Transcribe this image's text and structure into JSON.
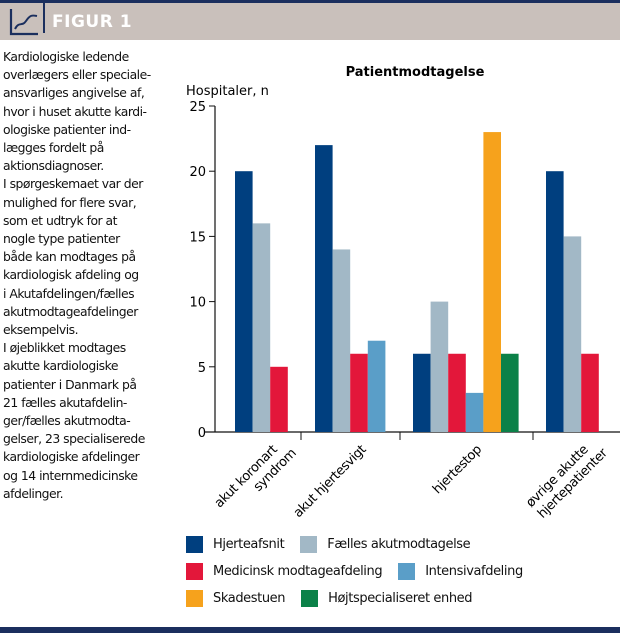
{
  "header": {
    "title": "FIGUR 1",
    "icon": "line-chart-icon"
  },
  "description": {
    "paragraphs": [
      "Kardiologiske ledende\noverlægers eller speciale-\nansvarliges angivelse af,\nhvor i huset akutte kardi-\nologiske patienter ind-\nlægges fordelt på\naktionsdiagnoser.",
      "I spørgeskemaet var der\nmulighed for flere svar,\nsom et udtryk for at\nnogle type patienter\nbåde kan modtages på\nkardiologisk afdeling og\ni Akutafdelingen/fælles\nakutmodtageafdelinger\neksempelvis.",
      "I øjeblikket modtages\nakutte kardiologiske\npatienter i Danmark på\n21 fælles akutafdelin-\nger/fælles akutmodta-\ngelser, 23 specialiserede\nkardiologiske afdelinger\nog 14 internmedicinske\nafdelinger."
    ]
  },
  "chart_data": {
    "type": "bar",
    "title": "Patientmodtagelse",
    "ylabel": "Hospitaler, n",
    "xlabel": "",
    "ylim": [
      0,
      25
    ],
    "yticks": [
      0,
      5,
      10,
      15,
      20,
      25
    ],
    "grid": false,
    "legend_position": "bottom",
    "categories": [
      [
        "akut koronart",
        "syndrom"
      ],
      [
        "akut hjertesvigt"
      ],
      [
        "hjertestop"
      ],
      [
        "øvrige akutte",
        "hjertepatienter"
      ]
    ],
    "series": [
      {
        "name": "Hjerteafsnit",
        "color": "#003f7f",
        "values": [
          20,
          22,
          6,
          20
        ]
      },
      {
        "name": "Fælles akutmodtagelse",
        "color": "#a2b8c6",
        "values": [
          16,
          14,
          10,
          15
        ]
      },
      {
        "name": "Medicinsk modtageafdeling",
        "color": "#e3173a",
        "values": [
          5,
          6,
          6,
          6
        ]
      },
      {
        "name": "Intensivafdeling",
        "color": "#5a9ec8",
        "values": [
          null,
          7,
          3,
          null
        ]
      },
      {
        "name": "Skadestuen",
        "color": "#f6a21c",
        "values": [
          null,
          null,
          23,
          null
        ]
      },
      {
        "name": "Højtspecialiseret enhed",
        "color": "#0b8148",
        "values": [
          null,
          null,
          6,
          null
        ]
      }
    ]
  },
  "legend": {
    "rows": [
      [
        0,
        1
      ],
      [
        2,
        3
      ],
      [
        4,
        5
      ]
    ]
  }
}
